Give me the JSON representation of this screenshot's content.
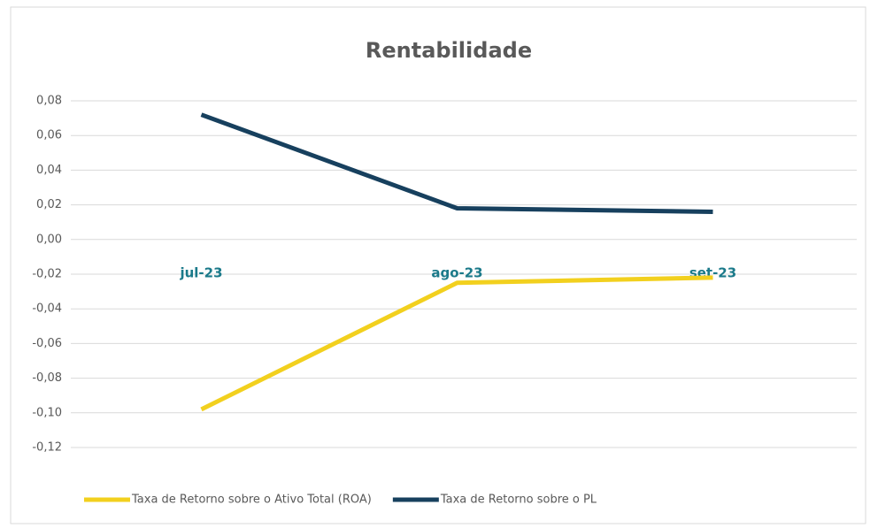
{
  "chart_data": {
    "type": "line",
    "title": "Rentabilidade",
    "categories": [
      "jul-23",
      "ago-23",
      "set-23"
    ],
    "series": [
      {
        "name": "Taxa de Retorno sobre o Ativo Total (ROA)",
        "color": "#f2d01e",
        "values": [
          -0.098,
          -0.025,
          -0.022
        ]
      },
      {
        "name": "Taxa de Retorno sobre o PL",
        "color": "#17405e",
        "values": [
          0.072,
          0.018,
          0.016
        ]
      }
    ],
    "ylim": [
      -0.12,
      0.08
    ],
    "yticks": [
      {
        "value": -0.12,
        "label": "-0,12"
      },
      {
        "value": -0.1,
        "label": "-0,10"
      },
      {
        "value": -0.08,
        "label": "-0,08"
      },
      {
        "value": -0.06,
        "label": "-0,06"
      },
      {
        "value": -0.04,
        "label": "-0,04"
      },
      {
        "value": -0.02,
        "label": "-0,02"
      },
      {
        "value": 0,
        "label": "0,00"
      },
      {
        "value": 0.02,
        "label": "0,02"
      },
      {
        "value": 0.04,
        "label": "0,04"
      },
      {
        "value": 0.06,
        "label": "0,06"
      },
      {
        "value": 0.08,
        "label": "0,08"
      }
    ],
    "grid": true,
    "legend": "bottom"
  }
}
